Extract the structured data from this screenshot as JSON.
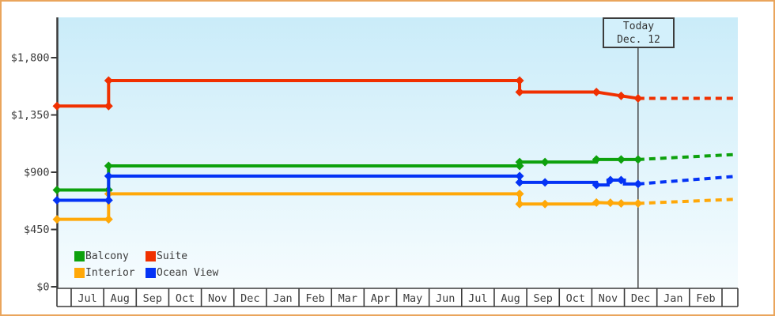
{
  "window": {
    "frame_border_color": "#EAA55C",
    "background_color": "#FFFFFF"
  },
  "chart_data": {
    "type": "line",
    "title": "",
    "description": "Stepped price history for cruise cabin categories with dotted price forecast after today",
    "x_axis": {
      "unit": "month",
      "tick_labels": [
        "Jul",
        "Aug",
        "Sep",
        "Oct",
        "Nov",
        "Dec",
        "Jan",
        "Feb",
        "Mar",
        "Apr",
        "May",
        "Jun",
        "Jul",
        "Aug",
        "Sep",
        "Oct",
        "Nov",
        "Dec",
        "Jan",
        "Feb"
      ]
    },
    "y_axis": {
      "tick_labels": [
        "$1,800",
        "$1,350",
        "$900",
        "$450",
        "$0"
      ],
      "tick_values": [
        1800,
        1350,
        900,
        450,
        0
      ],
      "range": [
        0,
        2100
      ],
      "grid": false
    },
    "today": {
      "label_line1": "Today",
      "label_line2": "Dec. 12",
      "t": 17.42
    },
    "layout": {
      "plot_gradient_top": "#CAECF9",
      "plot_gradient_bottom": "#F6FCFE",
      "axis_color": "#3A3A3A",
      "text_color": "#3C3C3C",
      "legend_position": "bottom-left-inside"
    },
    "series": [
      {
        "name": "Balcony",
        "color": "#0DA10D",
        "solid": [
          [
            -0.437,
            760
          ],
          [
            1.15,
            760
          ],
          [
            1.15,
            950
          ],
          [
            13.78,
            950
          ],
          [
            13.78,
            980
          ],
          [
            16.14,
            980
          ],
          [
            16.14,
            1000
          ],
          [
            17.42,
            1000
          ]
        ],
        "markers": [
          [
            -0.437,
            760
          ],
          [
            1.15,
            760
          ],
          [
            1.15,
            950
          ],
          [
            13.78,
            950
          ],
          [
            13.78,
            980
          ],
          [
            14.56,
            980
          ],
          [
            16.14,
            1000
          ],
          [
            16.9,
            1000
          ],
          [
            17.42,
            1000
          ]
        ],
        "forecast_dashed": [
          [
            17.42,
            1000
          ],
          [
            20.45,
            1040
          ]
        ]
      },
      {
        "name": "Suite",
        "color": "#F03000",
        "solid": [
          [
            -0.437,
            1420
          ],
          [
            1.15,
            1420
          ],
          [
            1.15,
            1620
          ],
          [
            13.78,
            1620
          ],
          [
            13.78,
            1530
          ],
          [
            16.14,
            1530
          ],
          [
            16.9,
            1500
          ],
          [
            17.42,
            1480
          ]
        ],
        "markers": [
          [
            -0.437,
            1420
          ],
          [
            1.15,
            1420
          ],
          [
            1.15,
            1620
          ],
          [
            13.78,
            1620
          ],
          [
            13.78,
            1530
          ],
          [
            16.14,
            1530
          ],
          [
            16.9,
            1500
          ],
          [
            17.42,
            1480
          ]
        ],
        "forecast_dashed": [
          [
            17.42,
            1480
          ],
          [
            20.45,
            1480
          ]
        ]
      },
      {
        "name": "Interior",
        "color": "#FFA808",
        "solid": [
          [
            -0.437,
            530
          ],
          [
            1.15,
            530
          ],
          [
            1.15,
            730
          ],
          [
            13.78,
            730
          ],
          [
            13.78,
            650
          ],
          [
            16.14,
            650
          ],
          [
            16.14,
            662
          ],
          [
            16.9,
            655
          ],
          [
            17.42,
            655
          ]
        ],
        "markers": [
          [
            -0.437,
            530
          ],
          [
            1.15,
            530
          ],
          [
            1.15,
            730
          ],
          [
            13.78,
            730
          ],
          [
            13.78,
            650
          ],
          [
            14.56,
            650
          ],
          [
            16.14,
            662
          ],
          [
            16.57,
            660
          ],
          [
            16.9,
            655
          ],
          [
            17.42,
            655
          ]
        ],
        "forecast_dashed": [
          [
            17.42,
            655
          ],
          [
            20.45,
            688
          ]
        ]
      },
      {
        "name": "Ocean View",
        "color": "#0433F5",
        "solid": [
          [
            -0.437,
            680
          ],
          [
            1.15,
            680
          ],
          [
            1.15,
            870
          ],
          [
            13.78,
            870
          ],
          [
            13.78,
            820
          ],
          [
            16.14,
            820
          ],
          [
            16.14,
            800
          ],
          [
            16.5,
            800
          ],
          [
            16.5,
            838
          ],
          [
            17.0,
            838
          ],
          [
            17.0,
            808
          ],
          [
            17.42,
            808
          ]
        ],
        "markers": [
          [
            -0.437,
            680
          ],
          [
            1.15,
            680
          ],
          [
            1.15,
            870
          ],
          [
            13.78,
            870
          ],
          [
            13.78,
            820
          ],
          [
            14.56,
            820
          ],
          [
            16.14,
            800
          ],
          [
            16.57,
            838
          ],
          [
            16.9,
            838
          ],
          [
            17.42,
            808
          ]
        ],
        "forecast_dashed": [
          [
            17.42,
            808
          ],
          [
            20.45,
            868
          ]
        ]
      }
    ]
  }
}
